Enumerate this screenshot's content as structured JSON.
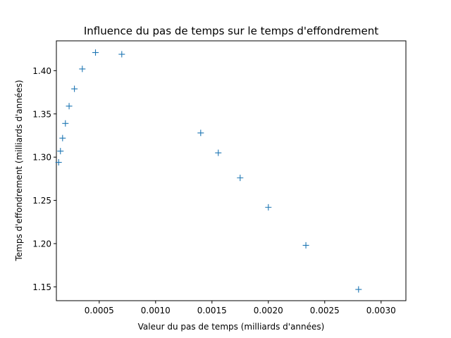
{
  "chart_data": {
    "type": "scatter",
    "title": "Influence du pas de temps sur le temps d'effondrement",
    "xlabel": "Valeur du pas de temps (milliards d'années)",
    "ylabel": "Temps d'effondrement (milliards d'années)",
    "xlim": [
      0.00012,
      0.00322
    ],
    "ylim": [
      1.134,
      1.4345
    ],
    "xticks": [
      0.0005,
      0.001,
      0.0015,
      0.002,
      0.0025,
      0.003
    ],
    "xtick_labels": [
      "0.0005",
      "0.0010",
      "0.0015",
      "0.0020",
      "0.0025",
      "0.0030"
    ],
    "yticks": [
      1.15,
      1.2,
      1.25,
      1.3,
      1.35,
      1.4
    ],
    "ytick_labels": [
      "1.15",
      "1.20",
      "1.25",
      "1.30",
      "1.35",
      "1.40"
    ],
    "marker": "+",
    "color": "#1f77b4",
    "grid": false,
    "series": [
      {
        "x": [
          0.00014,
          0.000156,
          0.000175,
          0.0002,
          0.000233,
          0.00028,
          0.00035,
          0.000467,
          0.0007,
          0.0014,
          0.001556,
          0.00175,
          0.002,
          0.002333,
          0.0028
        ],
        "y": [
          1.294,
          1.307,
          1.322,
          1.339,
          1.359,
          1.379,
          1.402,
          1.421,
          1.419,
          1.328,
          1.305,
          1.276,
          1.242,
          1.198,
          1.147
        ]
      }
    ]
  }
}
